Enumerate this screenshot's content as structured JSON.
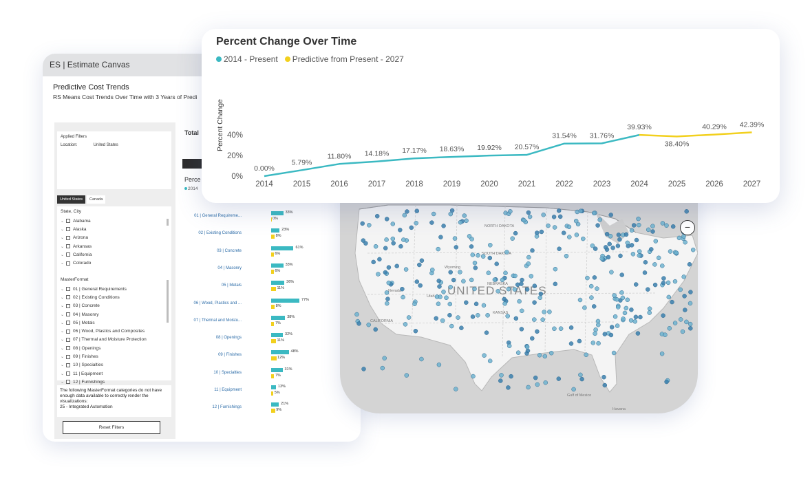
{
  "dashboard": {
    "window_title": "ES | Estimate Canvas",
    "title": "Predictive Cost Trends",
    "subtitle": "RS Means Cost Trends Over Time with 3 Years of Predi",
    "applied_filters": {
      "label": "Applied Filters",
      "location_key": "Location:",
      "location_value": "United States"
    },
    "country_tabs": [
      "United States",
      "Canada"
    ],
    "state_header": "State, City",
    "states": [
      "Alabama",
      "Alaska",
      "Arizona",
      "Arkansas",
      "California",
      "Colorado"
    ],
    "masterformat_header": "MasterFormat",
    "masterformat_items": [
      "01 | General Requirements",
      "02 | Existing Conditions",
      "03 | Concrete",
      "04 | Masonry",
      "05 | Metals",
      "06 | Wood, Plastics and Composites",
      "07 | Thermal and Moisture Protection",
      "08 | Openings",
      "09 | Finishes",
      "10 | Specialties",
      "11 | Equipment",
      "12 | Furnishings"
    ],
    "note": "The following MasterFormat categories do not have enough data available to correctly render the visualizations:",
    "note_item": "25 - Integrated Automation",
    "reset_label": "Reset Filters",
    "total_label": "Total",
    "percent_label": "Perce",
    "percent_legend": "2014",
    "categories": [
      {
        "name": "01 | General Requireme...",
        "v1": 33,
        "v2": 0,
        "l1": "33%",
        "l2": "0%"
      },
      {
        "name": "02 | Existing Conditions",
        "v1": 23,
        "v2": 8,
        "l1": "23%",
        "l2": "8%"
      },
      {
        "name": "03 | Concrete",
        "v1": 61,
        "v2": 6,
        "l1": "61%",
        "l2": "6%"
      },
      {
        "name": "04 | Masonry",
        "v1": 33,
        "v2": 6,
        "l1": "33%",
        "l2": "6%"
      },
      {
        "name": "05 | Metals",
        "v1": 36,
        "v2": 11,
        "l1": "36%",
        "l2": "11%"
      },
      {
        "name": "06 | Wood, Plastics and ...",
        "v1": 77,
        "v2": 8,
        "l1": "77%",
        "l2": "8%"
      },
      {
        "name": "07 | Thermal and Moistu...",
        "v1": 38,
        "v2": 7,
        "l1": "38%",
        "l2": "7%"
      },
      {
        "name": "08 | Openings",
        "v1": 32,
        "v2": 11,
        "l1": "32%",
        "l2": "11%"
      },
      {
        "name": "09 | Finishes",
        "v1": 48,
        "v2": 12,
        "l1": "48%",
        "l2": "12%"
      },
      {
        "name": "10 | Specialties",
        "v1": 31,
        "v2": 7,
        "l1": "31%",
        "l2": "7%"
      },
      {
        "name": "11 | Equipment",
        "v1": 13,
        "v2": 5,
        "l1": "13%",
        "l2": "5%"
      },
      {
        "name": "12 | Furnishings",
        "v1": 21,
        "v2": 9,
        "l1": "21%",
        "l2": "9%"
      }
    ]
  },
  "map": {
    "country_label": "UNITED STATES",
    "labels": [
      "NORTH DAKOTA",
      "SOUTH DAKOTA",
      "NEBRASKA",
      "KANSAS",
      "Nevada",
      "Utah",
      "Wyoming",
      "CALIFORNIA",
      "Gulf of Mexico",
      "Havana"
    ],
    "zoom_out": "−"
  },
  "chart_data": {
    "type": "line",
    "title": "Percent Change Over Time",
    "ylabel": "Percent Change",
    "xlabel": "",
    "x": [
      "2014",
      "2015",
      "2016",
      "2017",
      "2018",
      "2019",
      "2020",
      "2021",
      "2022",
      "2023",
      "2024",
      "2025",
      "2026",
      "2027"
    ],
    "yticks": [
      "0%",
      "20%",
      "40%"
    ],
    "ylim": [
      0,
      45
    ],
    "series": [
      {
        "name": "2014 - Present",
        "color": "#3bb9c2",
        "values": [
          0.0,
          5.79,
          11.8,
          14.18,
          17.17,
          18.63,
          19.92,
          20.57,
          31.54,
          31.76,
          39.93,
          null,
          null,
          null
        ]
      },
      {
        "name": "Predictive from Present - 2027",
        "color": "#f2d01e",
        "values": [
          null,
          null,
          null,
          null,
          null,
          null,
          null,
          null,
          null,
          null,
          39.93,
          38.4,
          40.29,
          42.39
        ]
      }
    ],
    "point_labels": [
      "0.00%",
      "5.79%",
      "11.80%",
      "14.18%",
      "17.17%",
      "18.63%",
      "19.92%",
      "20.57%",
      "31.54%",
      "31.76%",
      "39.93%",
      "38.40%",
      "40.29%",
      "42.39%"
    ]
  }
}
